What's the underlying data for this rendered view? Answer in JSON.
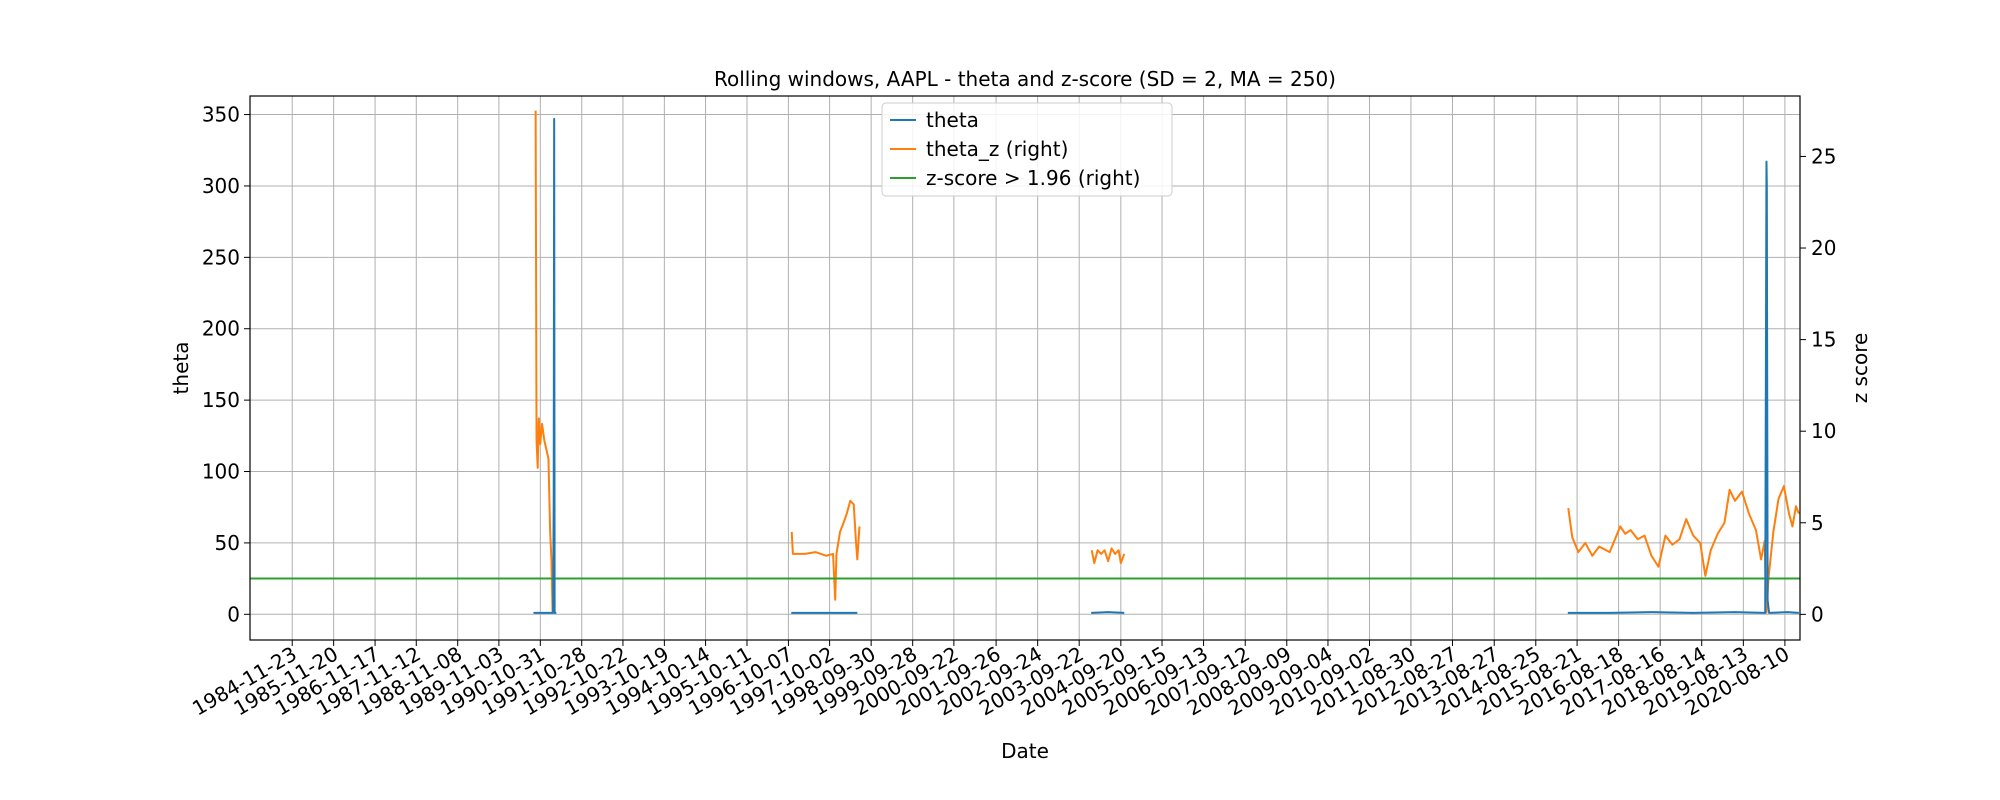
{
  "chart_data": {
    "type": "line",
    "title": "Rolling windows, AAPL - theta and z-score (SD = 2, MA = 250)",
    "xlabel": "Date",
    "ylabel": "theta",
    "y2label": "z score",
    "x_tick_labels": [
      "1984-11-23",
      "1985-11-20",
      "1986-11-17",
      "1987-11-12",
      "1988-11-08",
      "1989-11-03",
      "1990-10-31",
      "1991-10-28",
      "1992-10-22",
      "1993-10-19",
      "1994-10-14",
      "1995-10-11",
      "1996-10-07",
      "1997-10-02",
      "1998-09-30",
      "1999-09-28",
      "2000-09-22",
      "2001-09-26",
      "2002-09-24",
      "2003-09-22",
      "2004-09-20",
      "2005-09-15",
      "2006-09-13",
      "2007-09-12",
      "2008-09-09",
      "2009-09-04",
      "2010-09-02",
      "2011-08-30",
      "2012-08-27",
      "2013-08-27",
      "2014-08-25",
      "2015-08-21",
      "2016-08-18",
      "2017-08-16",
      "2018-08-14",
      "2019-08-13",
      "2020-08-10"
    ],
    "xlim": [
      "1983-11-20",
      "2020-12-20"
    ],
    "ylim": [
      -18,
      363
    ],
    "yticks": [
      0,
      50,
      100,
      150,
      200,
      250,
      300,
      350
    ],
    "y2lim": [
      -1.4,
      28.3
    ],
    "y2ticks": [
      0,
      5,
      10,
      15,
      20,
      25
    ],
    "grid": true,
    "legend_position": "top-center",
    "legend": [
      "theta",
      "theta_z (right)",
      "z-score > 1.96 (right)"
    ],
    "colors": {
      "theta": "#1f77b4",
      "theta_z": "#ff7f0e",
      "threshold": "#2ca02c"
    },
    "series": [
      {
        "name": "theta",
        "axis": "left",
        "segments": [
          [
            [
              "1990-09-01",
              1
            ],
            [
              "1991-02-20",
              1
            ],
            [
              "1991-02-25",
              80
            ],
            [
              "1991-03-01",
              347
            ],
            [
              "1991-03-05",
              1
            ],
            [
              "1991-03-20",
              1
            ]
          ],
          [
            [
              "1996-11-01",
              1
            ],
            [
              "1997-11-01",
              1
            ],
            [
              "1998-06-01",
              1
            ]
          ],
          [
            [
              "2004-01-05",
              1
            ],
            [
              "2004-06-01",
              1.5
            ],
            [
              "2004-10-20",
              1
            ]
          ],
          [
            [
              "2015-06-01",
              1
            ],
            [
              "2016-06-01",
              1
            ],
            [
              "2017-06-01",
              1.5
            ],
            [
              "2018-06-01",
              1
            ],
            [
              "2019-06-01",
              1.5
            ],
            [
              "2020-02-20",
              1
            ],
            [
              "2020-03-02",
              317
            ],
            [
              "2020-03-05",
              300
            ],
            [
              "2020-03-12",
              10
            ],
            [
              "2020-03-25",
              1
            ],
            [
              "2020-09-01",
              1.5
            ],
            [
              "2020-12-10",
              1
            ]
          ]
        ]
      },
      {
        "name": "theta_z",
        "axis": "right",
        "segments": [
          [
            [
              "1990-09-20",
              27.5
            ],
            [
              "1990-09-28",
              9.5
            ],
            [
              "1990-10-08",
              8.0
            ],
            [
              "1990-10-18",
              10.7
            ],
            [
              "1990-10-30",
              9.3
            ],
            [
              "1990-11-15",
              10.4
            ],
            [
              "1990-12-05",
              9.5
            ],
            [
              "1991-01-10",
              8.5
            ],
            [
              "1991-01-25",
              4.5
            ],
            [
              "1991-02-05",
              3.0
            ],
            [
              "1991-02-15",
              0.1
            ],
            [
              "1991-03-05",
              0.1
            ]
          ],
          [
            [
              "1996-11-05",
              4.5
            ],
            [
              "1996-11-15",
              3.3
            ],
            [
              "1997-01-15",
              3.3
            ],
            [
              "1997-03-01",
              3.3
            ],
            [
              "1997-06-01",
              3.4
            ],
            [
              "1997-09-01",
              3.2
            ],
            [
              "1997-11-01",
              3.3
            ],
            [
              "1997-11-20",
              0.8
            ],
            [
              "1997-12-01",
              3.3
            ],
            [
              "1998-01-01",
              4.5
            ],
            [
              "1998-02-01",
              5.0
            ],
            [
              "1998-03-01",
              5.5
            ],
            [
              "1998-04-01",
              6.2
            ],
            [
              "1998-05-01",
              6.0
            ],
            [
              "1998-05-20",
              4.0
            ],
            [
              "1998-06-01",
              3.0
            ],
            [
              "1998-06-20",
              4.8
            ]
          ],
          [
            [
              "2004-01-10",
              3.5
            ],
            [
              "2004-02-01",
              2.8
            ],
            [
              "2004-03-01",
              3.5
            ],
            [
              "2004-04-01",
              3.3
            ],
            [
              "2004-05-01",
              3.5
            ],
            [
              "2004-06-01",
              2.9
            ],
            [
              "2004-07-01",
              3.6
            ],
            [
              "2004-08-01",
              3.3
            ],
            [
              "2004-09-01",
              3.5
            ],
            [
              "2004-09-20",
              2.8
            ],
            [
              "2004-10-20",
              3.3
            ]
          ],
          [
            [
              "2015-06-05",
              5.8
            ],
            [
              "2015-07-10",
              4.2
            ],
            [
              "2015-09-01",
              3.4
            ],
            [
              "2015-11-01",
              3.9
            ],
            [
              "2016-01-01",
              3.2
            ],
            [
              "2016-03-01",
              3.7
            ],
            [
              "2016-06-01",
              3.4
            ],
            [
              "2016-09-01",
              4.8
            ],
            [
              "2016-10-15",
              4.4
            ],
            [
              "2016-12-01",
              4.6
            ],
            [
              "2017-02-01",
              4.1
            ],
            [
              "2017-04-01",
              4.3
            ],
            [
              "2017-06-01",
              3.2
            ],
            [
              "2017-08-01",
              2.6
            ],
            [
              "2017-10-01",
              4.3
            ],
            [
              "2017-12-01",
              3.8
            ],
            [
              "2018-02-01",
              4.1
            ],
            [
              "2018-04-01",
              5.2
            ],
            [
              "2018-06-01",
              4.3
            ],
            [
              "2018-08-01",
              3.9
            ],
            [
              "2018-09-15",
              2.1
            ],
            [
              "2018-11-01",
              3.5
            ],
            [
              "2019-01-01",
              4.4
            ],
            [
              "2019-03-01",
              5.0
            ],
            [
              "2019-04-15",
              6.8
            ],
            [
              "2019-06-01",
              6.2
            ],
            [
              "2019-08-01",
              6.7
            ],
            [
              "2019-10-01",
              5.5
            ],
            [
              "2019-12-01",
              4.6
            ],
            [
              "2020-01-15",
              3.0
            ],
            [
              "2020-02-15",
              4.0
            ],
            [
              "2020-03-02",
              0.1
            ],
            [
              "2020-03-20",
              2.0
            ],
            [
              "2020-05-01",
              4.5
            ],
            [
              "2020-06-15",
              6.3
            ],
            [
              "2020-08-01",
              7.0
            ],
            [
              "2020-09-15",
              5.5
            ],
            [
              "2020-10-15",
              4.8
            ],
            [
              "2020-11-15",
              5.9
            ],
            [
              "2020-12-10",
              5.5
            ]
          ]
        ]
      },
      {
        "name": "z-score > 1.96",
        "axis": "right",
        "segments": [
          [
            [
              "1983-11-20",
              1.96
            ],
            [
              "2020-12-20",
              1.96
            ]
          ]
        ]
      }
    ]
  }
}
